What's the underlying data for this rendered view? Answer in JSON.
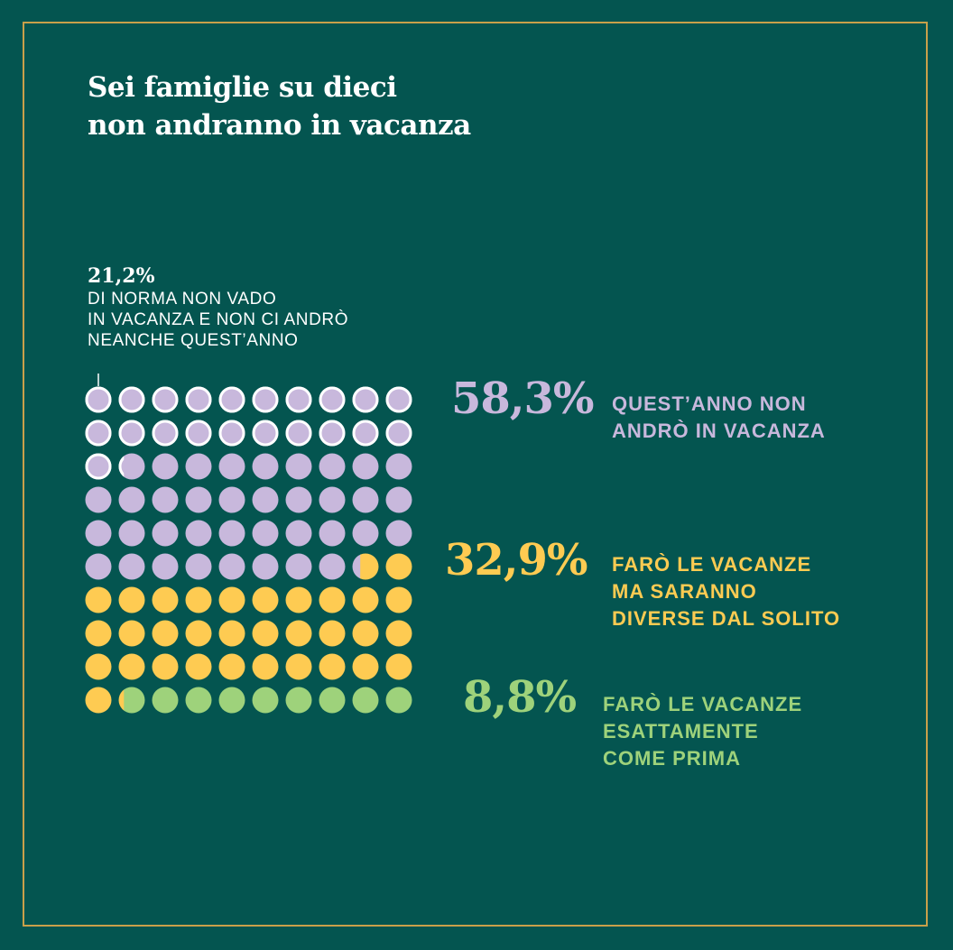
{
  "title_lines": [
    "Sei famiglie su dieci",
    "non andranno in vacanza"
  ],
  "annotation": {
    "value": "21,2%",
    "text_lines": [
      "DI NORMA NON VADO",
      "IN VACANZA E NON CI ANDRÒ",
      "NEANCHE QUEST’ANNO"
    ],
    "highlight_fraction": 0.212
  },
  "colors": {
    "background": "#045550",
    "frame": "#c9a04a",
    "highlight_outline": "#ffffff",
    "text": "#ffffff"
  },
  "chart_data": {
    "type": "waffle",
    "grid": [
      10,
      10
    ],
    "series": [
      {
        "value": 58.3,
        "label": "58,3%",
        "text_lines": [
          "QUEST’ANNO NON",
          "ANDRÒ IN VACANZA"
        ],
        "color": "#c8b8dc"
      },
      {
        "value": 32.9,
        "label": "32,9%",
        "text_lines": [
          "FARÒ LE VACANZE",
          "MA SARANNO",
          "DIVERSE DAL SOLITO"
        ],
        "color": "#fecb52"
      },
      {
        "value": 8.8,
        "label": "8,8%",
        "text_lines": [
          "FARÒ LE VACANZE",
          "ESATTAMENTE",
          "COME PRIMA"
        ],
        "color": "#9ed27b"
      }
    ]
  }
}
